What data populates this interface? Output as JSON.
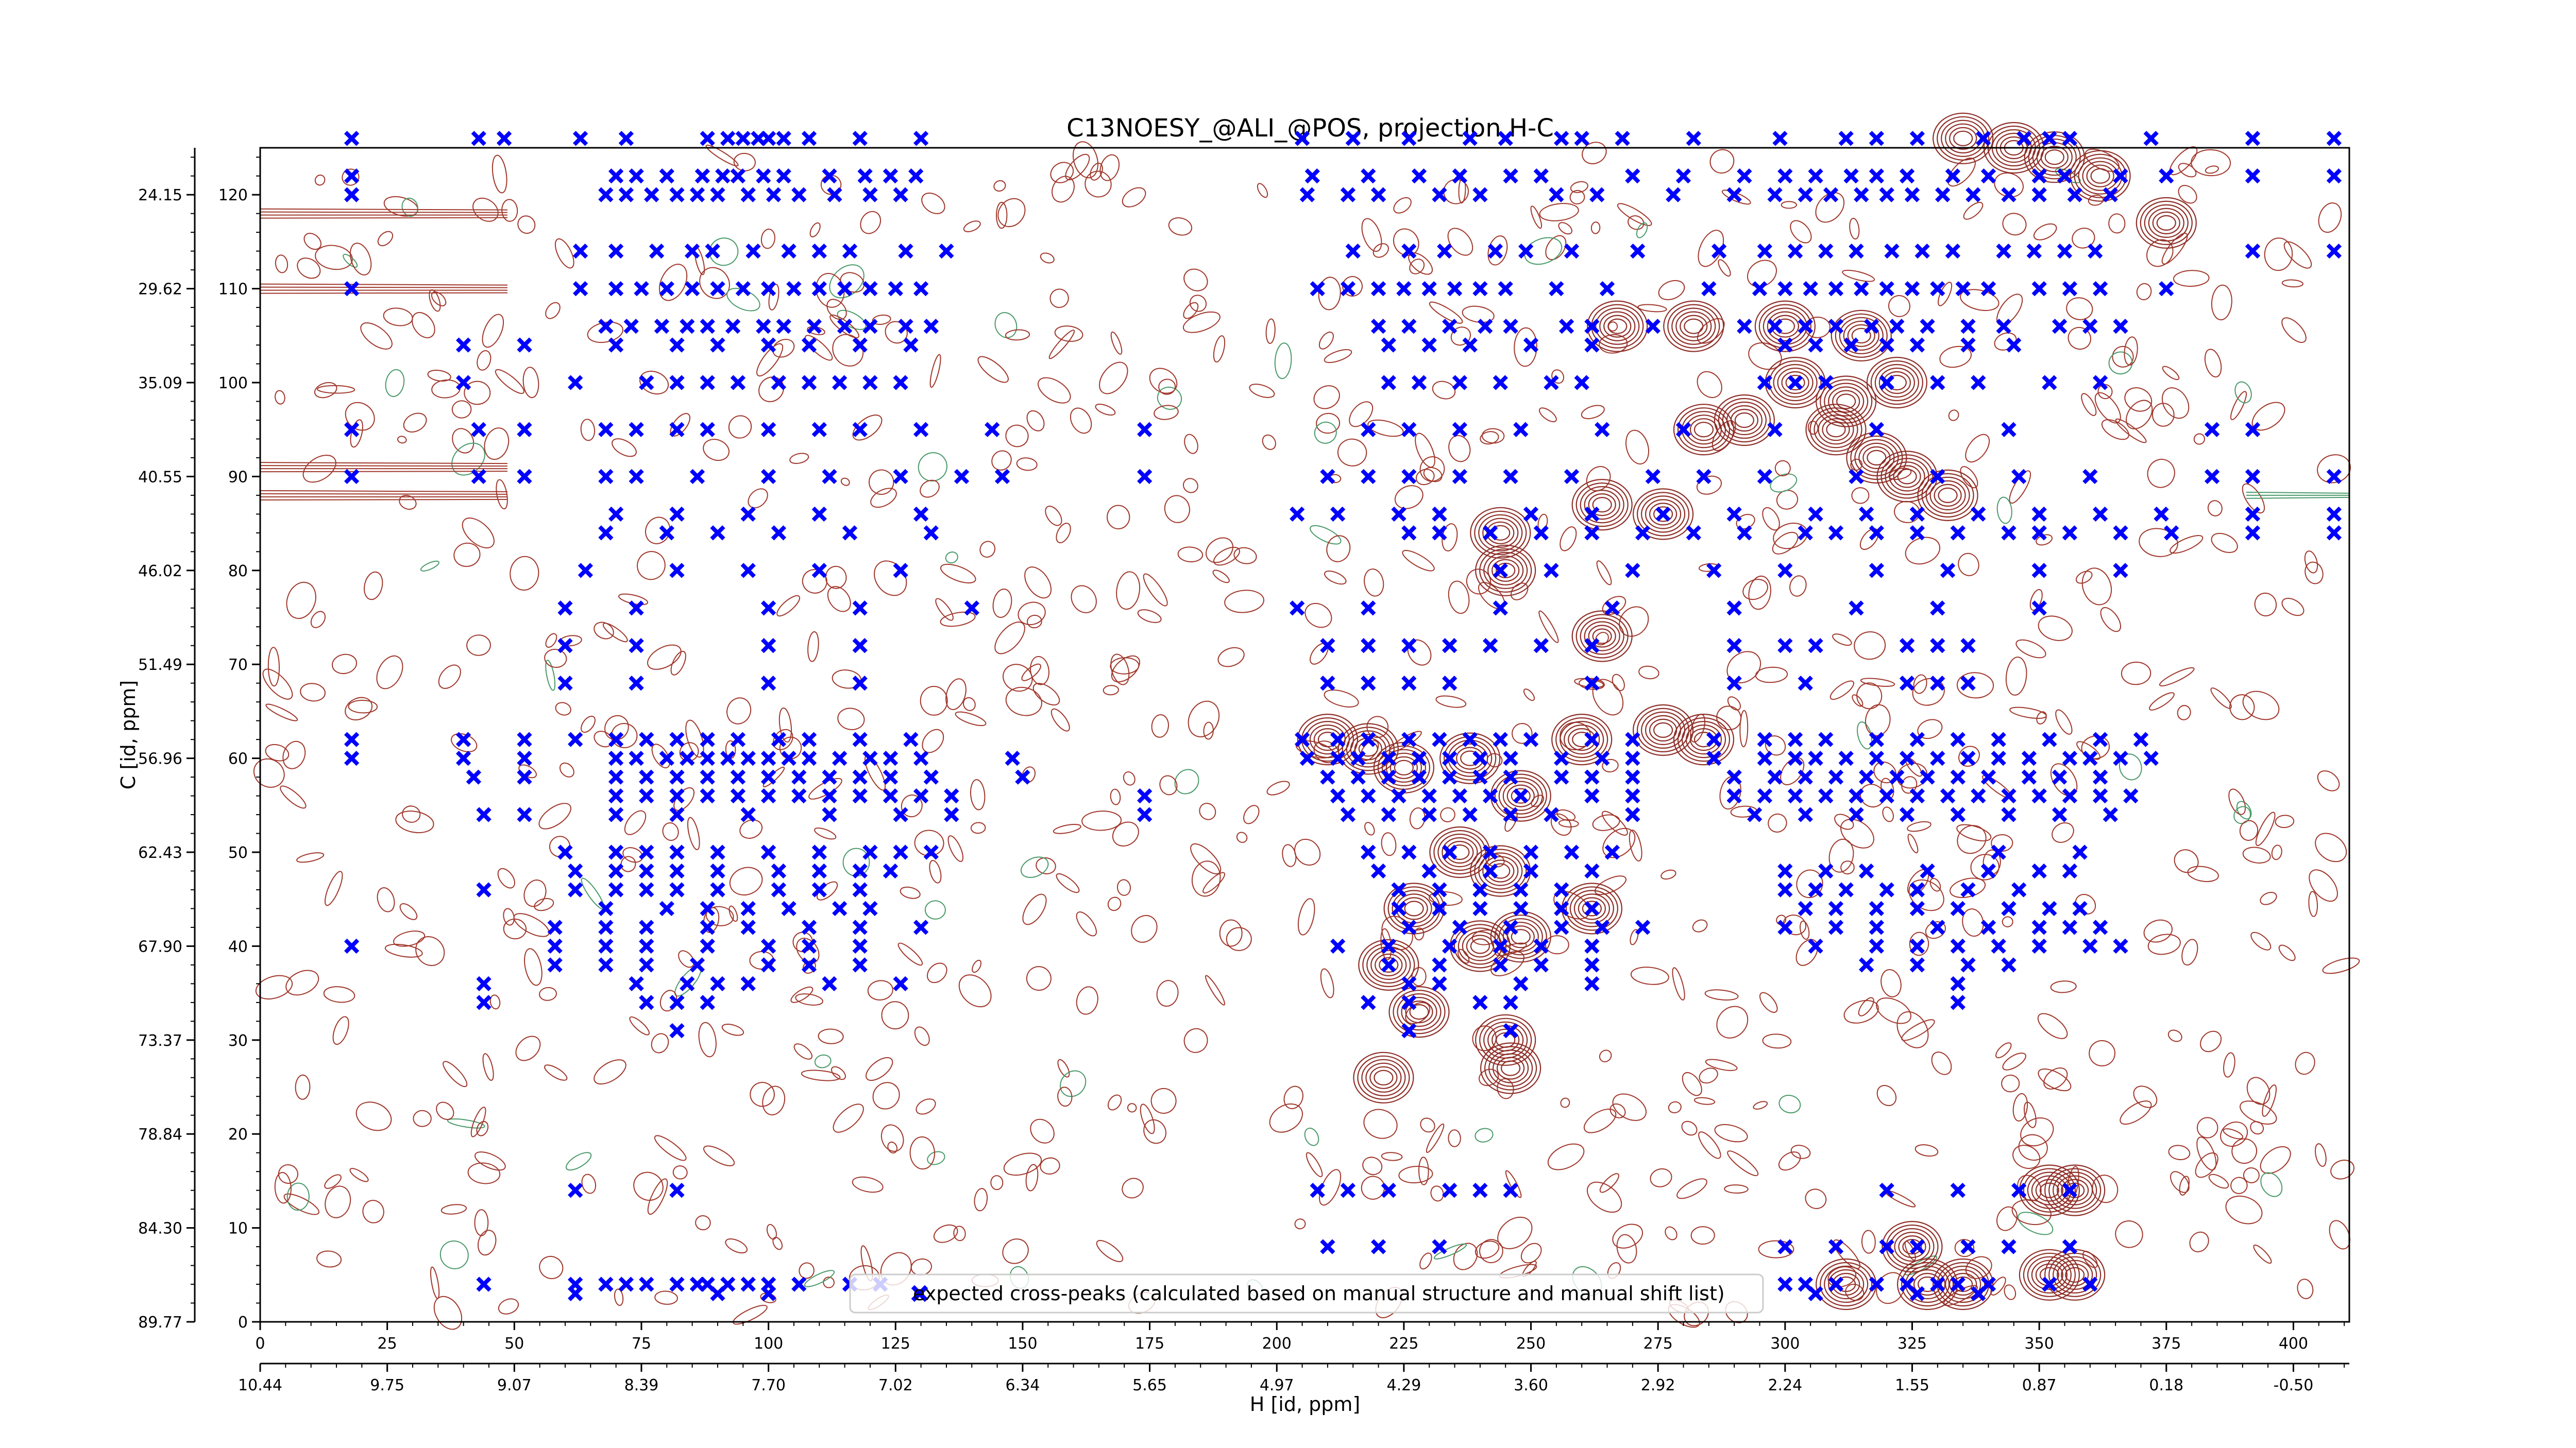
{
  "chart_data": {
    "type": "scatter",
    "title": "C13NOESY_@ALI_@POS, projection H-C",
    "xlabel": "H [id, ppm]",
    "ylabel": "C [id, ppm]",
    "xlim": [
      0,
      411
    ],
    "ylim": [
      0,
      125
    ],
    "x_ticks": [
      0,
      25,
      50,
      75,
      100,
      125,
      150,
      175,
      200,
      225,
      250,
      275,
      300,
      325,
      350,
      375,
      400
    ],
    "x_ppm_labels": [
      "10.44",
      "9.75",
      "9.07",
      "8.39",
      "7.70",
      "7.02",
      "6.34",
      "5.65",
      "4.97",
      "4.29",
      "3.60",
      "2.92",
      "2.24",
      "1.55",
      "0.87",
      "0.18",
      "-0.50"
    ],
    "y_ticks": [
      0,
      10,
      20,
      30,
      40,
      50,
      60,
      70,
      80,
      90,
      100,
      110,
      120
    ],
    "y_ppm_labels": [
      "89.77",
      "84.30",
      "78.84",
      "73.37",
      "67.90",
      "62.43",
      "56.96",
      "51.49",
      "46.02",
      "40.55",
      "35.09",
      "29.62",
      "24.15"
    ],
    "legend": {
      "label": "expected cross-peaks (calculated based on manual structure and manual shift list)",
      "placement": "bottom-center"
    },
    "series": [
      {
        "name": "expected cross-peaks (calculated based on manual structure and manual shift list)",
        "color": "#0000ff",
        "marker": "x",
        "bands": [
          {
            "y": 126,
            "x": [
              18,
              43,
              48,
              63,
              72,
              88,
              92,
              95,
              98,
              100,
              103,
              108,
              118,
              130,
              205,
              215,
              226,
              238,
              245,
              256,
              260,
              268,
              282,
              299,
              312,
              318,
              326,
              339,
              347,
              352,
              356,
              372,
              392,
              408
            ]
          },
          {
            "y": 122,
            "x": [
              18,
              70,
              74,
              80,
              87,
              91,
              94,
              99,
              103,
              112,
              119,
              124,
              129,
              207,
              218,
              228,
              236,
              246,
              252,
              270,
              280,
              292,
              300,
              306,
              313,
              318,
              324,
              333,
              340,
              350,
              355,
              366,
              375,
              392,
              408
            ]
          },
          {
            "y": 120,
            "x": [
              18,
              68,
              72,
              77,
              82,
              86,
              90,
              96,
              101,
              106,
              113,
              120,
              126,
              206,
              214,
              220,
              232,
              240,
              255,
              263,
              278,
              290,
              298,
              304,
              309,
              315,
              320,
              325,
              331,
              337,
              344,
              350,
              357,
              364
            ]
          },
          {
            "y": 114,
            "x": [
              63,
              70,
              78,
              85,
              89,
              97,
              104,
              110,
              116,
              127,
              135,
              215,
              226,
              233,
              243,
              249,
              258,
              271,
              287,
              296,
              302,
              308,
              314,
              321,
              327,
              333,
              343,
              349,
              355,
              361,
              392,
              408
            ]
          },
          {
            "y": 110,
            "x": [
              18,
              63,
              70,
              75,
              80,
              85,
              90,
              95,
              100,
              105,
              110,
              115,
              120,
              125,
              130,
              208,
              214,
              220,
              225,
              230,
              235,
              240,
              245,
              255,
              265,
              285,
              295,
              300,
              305,
              310,
              315,
              320,
              325,
              330,
              335,
              340,
              350,
              356,
              362,
              375
            ]
          },
          {
            "y": 106,
            "x": [
              68,
              73,
              79,
              84,
              88,
              93,
              99,
              103,
              109,
              115,
              120,
              127,
              132,
              220,
              226,
              234,
              241,
              246,
              257,
              262,
              274,
              292,
              298,
              304,
              310,
              317,
              322,
              328,
              336,
              343,
              354,
              360,
              366
            ]
          },
          {
            "y": 104,
            "x": [
              40,
              52,
              70,
              82,
              90,
              100,
              108,
              118,
              128,
              222,
              230,
              238,
              250,
              262,
              300,
              306,
              313,
              320,
              326,
              336,
              345
            ]
          },
          {
            "y": 100,
            "x": [
              40,
              62,
              76,
              82,
              88,
              94,
              102,
              108,
              114,
              120,
              126,
              222,
              228,
              236,
              244,
              254,
              260,
              296,
              302,
              308,
              320,
              330,
              338,
              352,
              362
            ]
          },
          {
            "y": 95,
            "x": [
              18,
              43,
              52,
              68,
              74,
              82,
              88,
              100,
              110,
              118,
              130,
              144,
              174,
              218,
              226,
              236,
              248,
              264,
              280,
              298,
              318,
              344,
              384,
              392
            ]
          },
          {
            "y": 90,
            "x": [
              18,
              43,
              52,
              68,
              74,
              86,
              100,
              112,
              126,
              138,
              146,
              174,
              210,
              218,
              226,
              236,
              246,
              258,
              274,
              284,
              296,
              314,
              330,
              346,
              360,
              384,
              392,
              408
            ]
          },
          {
            "y": 86,
            "x": [
              70,
              82,
              96,
              110,
              130,
              204,
              212,
              224,
              232,
              250,
              262,
              276,
              290,
              306,
              316,
              326,
              338,
              350,
              362,
              374,
              392,
              408
            ]
          },
          {
            "y": 84,
            "x": [
              68,
              80,
              90,
              102,
              116,
              132,
              226,
              232,
              242,
              252,
              262,
              272,
              282,
              292,
              304,
              310,
              318,
              326,
              334,
              344,
              350,
              356,
              366,
              376,
              392,
              408
            ]
          },
          {
            "y": 80,
            "x": [
              64,
              82,
              96,
              110,
              126,
              244,
              254,
              270,
              286,
              300,
              318,
              332,
              350,
              366
            ]
          },
          {
            "y": 76,
            "x": [
              60,
              74,
              100,
              118,
              140,
              204,
              218,
              244,
              266,
              290,
              314,
              330,
              350
            ]
          },
          {
            "y": 72,
            "x": [
              60,
              74,
              100,
              118,
              210,
              218,
              226,
              234,
              242,
              252,
              262,
              290,
              300,
              306,
              324,
              330,
              336
            ]
          },
          {
            "y": 68,
            "x": [
              60,
              74,
              100,
              118,
              210,
              218,
              226,
              234,
              262,
              290,
              304,
              324,
              330,
              336
            ]
          },
          {
            "y": 62,
            "x": [
              18,
              40,
              52,
              62,
              70,
              76,
              82,
              88,
              94,
              102,
              108,
              118,
              128,
              205,
              212,
              218,
              226,
              232,
              238,
              244,
              250,
              262,
              270,
              286,
              296,
              302,
              308,
              318,
              326,
              334,
              342,
              352,
              362,
              370
            ]
          },
          {
            "y": 60,
            "x": [
              18,
              40,
              52,
              70,
              74,
              80,
              84,
              88,
              92,
              96,
              100,
              104,
              108,
              114,
              120,
              124,
              130,
              148,
              206,
              212,
              216,
              222,
              228,
              234,
              240,
              246,
              256,
              264,
              270,
              286,
              296,
              302,
              306,
              312,
              318,
              324,
              330,
              336,
              342,
              348,
              356,
              360,
              366,
              372
            ]
          },
          {
            "y": 58,
            "x": [
              42,
              52,
              70,
              76,
              82,
              88,
              94,
              100,
              106,
              112,
              118,
              124,
              132,
              150,
              210,
              216,
              222,
              228,
              234,
              240,
              246,
              256,
              262,
              270,
              290,
              298,
              304,
              310,
              316,
              322,
              328,
              334,
              340,
              348,
              354,
              362
            ]
          },
          {
            "y": 56,
            "x": [
              70,
              76,
              82,
              88,
              94,
              100,
              106,
              112,
              118,
              124,
              130,
              136,
              174,
              212,
              218,
              224,
              230,
              236,
              242,
              248,
              262,
              270,
              290,
              296,
              302,
              308,
              314,
              320,
              326,
              332,
              338,
              344,
              350,
              356,
              362,
              368
            ]
          },
          {
            "y": 54,
            "x": [
              44,
              52,
              70,
              82,
              96,
              112,
              126,
              136,
              174,
              214,
              222,
              230,
              238,
              246,
              254,
              270,
              294,
              304,
              314,
              324,
              334,
              344,
              354,
              364
            ]
          },
          {
            "y": 50,
            "x": [
              60,
              70,
              76,
              82,
              90,
              100,
              110,
              120,
              126,
              132,
              218,
              226,
              234,
              242,
              250,
              258,
              266,
              342,
              358
            ]
          },
          {
            "y": 48,
            "x": [
              62,
              70,
              76,
              82,
              90,
              102,
              110,
              118,
              124,
              220,
              230,
              242,
              250,
              262,
              300,
              308,
              316,
              328,
              340,
              350,
              356
            ]
          },
          {
            "y": 46,
            "x": [
              44,
              62,
              70,
              76,
              82,
              90,
              102,
              110,
              118,
              224,
              232,
              240,
              248,
              256,
              300,
              306,
              312,
              320,
              326,
              336,
              346
            ]
          },
          {
            "y": 44,
            "x": [
              68,
              80,
              88,
              96,
              104,
              114,
              120,
              224,
              232,
              240,
              248,
              256,
              262,
              304,
              310,
              318,
              326,
              334,
              344,
              352,
              358
            ]
          },
          {
            "y": 42,
            "x": [
              58,
              68,
              76,
              88,
              96,
              108,
              118,
              130,
              226,
              236,
              246,
              256,
              264,
              272,
              300,
              310,
              318,
              330,
              340,
              350,
              356,
              362
            ]
          },
          {
            "y": 40,
            "x": [
              18,
              58,
              68,
              76,
              88,
              100,
              108,
              118,
              212,
              222,
              234,
              244,
              252,
              262,
              306,
              318,
              326,
              334,
              342,
              350,
              360,
              366
            ]
          },
          {
            "y": 38,
            "x": [
              58,
              68,
              76,
              86,
              100,
              108,
              118,
              222,
              232,
              244,
              252,
              262,
              316,
              326,
              336,
              344
            ]
          },
          {
            "y": 36,
            "x": [
              44,
              74,
              84,
              90,
              96,
              112,
              126,
              226,
              232,
              248,
              262,
              334
            ]
          },
          {
            "y": 34,
            "x": [
              44,
              76,
              82,
              88,
              218,
              226,
              240,
              246,
              334
            ]
          },
          {
            "y": 31,
            "x": [
              82,
              226,
              246
            ]
          },
          {
            "y": 14,
            "x": [
              62,
              82,
              208,
              214,
              222,
              234,
              240,
              246,
              320,
              334,
              346,
              356
            ]
          },
          {
            "y": 8,
            "x": [
              210,
              220,
              232,
              300,
              310,
              320,
              326,
              336,
              344,
              356
            ]
          },
          {
            "y": 4,
            "x": [
              44,
              62,
              68,
              72,
              76,
              82,
              86,
              88,
              92,
              96,
              100,
              106,
              116,
              122,
              300,
              304,
              310,
              318,
              324,
              330,
              334,
              340,
              352,
              360
            ]
          },
          {
            "y": 3,
            "x": [
              62,
              90,
              100,
              306,
              326,
              338
            ]
          }
        ]
      }
    ]
  }
}
